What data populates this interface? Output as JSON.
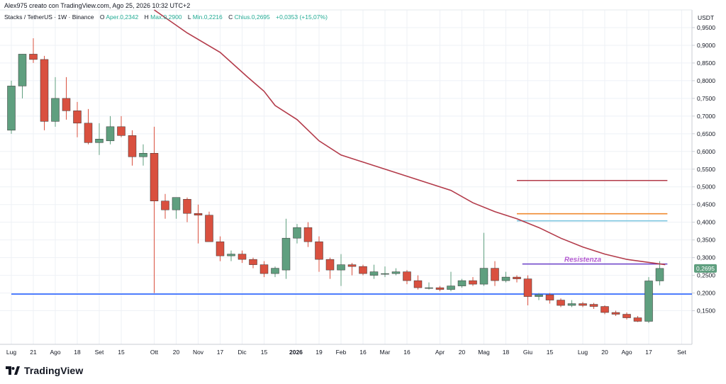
{
  "header": {
    "attribution": "Alex975 creato con TradingView.com, Ago 25, 2026 10:32 UTC+2"
  },
  "legend": {
    "symbol": "Stacks / TetherUS · 1W · Binance",
    "open_label": "O",
    "open_value": "Aper.0,2342",
    "high_label": "H",
    "high_value": "Max.0,2900",
    "low_label": "L",
    "low_value": "Min.0,2216",
    "close_label": "C",
    "close_value": "Chius.0,2695",
    "change_value": "+0,0353 (+15,07%)"
  },
  "branding": {
    "logo_text": "TradingView"
  },
  "colors": {
    "up": "#5f9f7f",
    "down": "#d9503f",
    "ma": "#b33b4a",
    "support": "#2962ff",
    "resistance_label": "#b45bd1",
    "last_price_bg": "#5f9f7f"
  },
  "chart_data": {
    "type": "candlestick",
    "currency": "USDT",
    "ylim": [
      0.055,
      1.0
    ],
    "y_ticks": [
      0.15,
      0.2,
      0.25,
      0.3,
      0.35,
      0.4,
      0.45,
      0.5,
      0.55,
      0.6,
      0.65,
      0.7,
      0.75,
      0.8,
      0.85,
      0.9,
      0.95
    ],
    "y_tick_labels": [
      "0,1500",
      "0,2000",
      "0,2500",
      "0,3000",
      "0,3500",
      "0,4000",
      "0,4500",
      "0,5000",
      "0,5500",
      "0,6000",
      "0,6500",
      "0,7000",
      "0,7500",
      "0,8000",
      "0,8500",
      "0,9000",
      "0,9500"
    ],
    "x_labels": [
      {
        "i": 0,
        "text": "Lug"
      },
      {
        "i": 2,
        "text": "21"
      },
      {
        "i": 4,
        "text": "Ago"
      },
      {
        "i": 6,
        "text": "18"
      },
      {
        "i": 8,
        "text": "Set"
      },
      {
        "i": 10,
        "text": "15"
      },
      {
        "i": 13,
        "text": "Ott"
      },
      {
        "i": 15,
        "text": "20"
      },
      {
        "i": 17,
        "text": "Nov"
      },
      {
        "i": 19,
        "text": "17"
      },
      {
        "i": 21,
        "text": "Dic"
      },
      {
        "i": 23,
        "text": "15"
      },
      {
        "i": 25.9,
        "text": "2026",
        "bold": true
      },
      {
        "i": 28,
        "text": "19"
      },
      {
        "i": 30,
        "text": "Feb"
      },
      {
        "i": 32,
        "text": "16"
      },
      {
        "i": 34,
        "text": "Mar"
      },
      {
        "i": 36,
        "text": "16"
      },
      {
        "i": 39,
        "text": "Apr"
      },
      {
        "i": 41,
        "text": "20"
      },
      {
        "i": 43,
        "text": "Mag"
      },
      {
        "i": 45,
        "text": "18"
      },
      {
        "i": 47,
        "text": "Giu"
      },
      {
        "i": 49,
        "text": "15"
      },
      {
        "i": 52,
        "text": "Lug"
      },
      {
        "i": 54,
        "text": "20"
      },
      {
        "i": 56,
        "text": "Ago"
      },
      {
        "i": 58,
        "text": "17"
      },
      {
        "i": 61,
        "text": "Set"
      }
    ],
    "candles": [
      [
        0.66,
        0.8,
        0.65,
        0.785
      ],
      [
        0.785,
        0.875,
        0.75,
        0.875
      ],
      [
        0.875,
        0.92,
        0.85,
        0.86
      ],
      [
        0.86,
        0.87,
        0.66,
        0.685
      ],
      [
        0.685,
        0.81,
        0.67,
        0.75
      ],
      [
        0.75,
        0.81,
        0.69,
        0.715
      ],
      [
        0.715,
        0.74,
        0.64,
        0.68
      ],
      [
        0.68,
        0.72,
        0.62,
        0.625
      ],
      [
        0.625,
        0.68,
        0.59,
        0.635
      ],
      [
        0.63,
        0.7,
        0.62,
        0.67
      ],
      [
        0.67,
        0.7,
        0.64,
        0.645
      ],
      [
        0.645,
        0.66,
        0.56,
        0.585
      ],
      [
        0.585,
        0.62,
        0.56,
        0.595
      ],
      [
        0.595,
        0.67,
        0.2,
        0.46
      ],
      [
        0.46,
        0.48,
        0.41,
        0.435
      ],
      [
        0.435,
        0.47,
        0.41,
        0.47
      ],
      [
        0.465,
        0.47,
        0.4,
        0.425
      ],
      [
        0.425,
        0.45,
        0.34,
        0.42
      ],
      [
        0.42,
        0.43,
        0.35,
        0.345
      ],
      [
        0.345,
        0.36,
        0.29,
        0.305
      ],
      [
        0.305,
        0.32,
        0.29,
        0.31
      ],
      [
        0.31,
        0.32,
        0.285,
        0.295
      ],
      [
        0.295,
        0.3,
        0.27,
        0.28
      ],
      [
        0.28,
        0.29,
        0.245,
        0.255
      ],
      [
        0.255,
        0.275,
        0.245,
        0.27
      ],
      [
        0.265,
        0.41,
        0.24,
        0.355
      ],
      [
        0.355,
        0.395,
        0.34,
        0.385
      ],
      [
        0.385,
        0.4,
        0.33,
        0.345
      ],
      [
        0.345,
        0.36,
        0.26,
        0.295
      ],
      [
        0.295,
        0.3,
        0.24,
        0.265
      ],
      [
        0.265,
        0.31,
        0.22,
        0.28
      ],
      [
        0.28,
        0.285,
        0.25,
        0.275
      ],
      [
        0.275,
        0.28,
        0.25,
        0.255
      ],
      [
        0.25,
        0.28,
        0.24,
        0.26
      ],
      [
        0.255,
        0.275,
        0.245,
        0.255
      ],
      [
        0.255,
        0.27,
        0.25,
        0.26
      ],
      [
        0.26,
        0.265,
        0.225,
        0.235
      ],
      [
        0.235,
        0.25,
        0.21,
        0.215
      ],
      [
        0.215,
        0.23,
        0.21,
        0.215
      ],
      [
        0.215,
        0.22,
        0.205,
        0.21
      ],
      [
        0.21,
        0.26,
        0.205,
        0.22
      ],
      [
        0.22,
        0.24,
        0.215,
        0.235
      ],
      [
        0.235,
        0.245,
        0.22,
        0.225
      ],
      [
        0.225,
        0.37,
        0.22,
        0.27
      ],
      [
        0.27,
        0.29,
        0.22,
        0.235
      ],
      [
        0.235,
        0.26,
        0.23,
        0.245
      ],
      [
        0.245,
        0.25,
        0.23,
        0.24
      ],
      [
        0.24,
        0.25,
        0.165,
        0.19
      ],
      [
        0.19,
        0.2,
        0.18,
        0.195
      ],
      [
        0.195,
        0.2,
        0.17,
        0.18
      ],
      [
        0.18,
        0.185,
        0.16,
        0.165
      ],
      [
        0.165,
        0.18,
        0.16,
        0.17
      ],
      [
        0.17,
        0.175,
        0.16,
        0.165
      ],
      [
        0.168,
        0.172,
        0.155,
        0.162
      ],
      [
        0.162,
        0.165,
        0.14,
        0.145
      ],
      [
        0.145,
        0.15,
        0.135,
        0.14
      ],
      [
        0.14,
        0.145,
        0.125,
        0.13
      ],
      [
        0.13,
        0.135,
        0.118,
        0.12
      ],
      [
        0.12,
        0.245,
        0.115,
        0.2342
      ],
      [
        0.2342,
        0.29,
        0.2216,
        0.2695
      ]
    ],
    "ma": [
      [
        13,
        1.0
      ],
      [
        16,
        0.935
      ],
      [
        19,
        0.88
      ],
      [
        21.5,
        0.81
      ],
      [
        23,
        0.77
      ],
      [
        24,
        0.73
      ],
      [
        26,
        0.69
      ],
      [
        28,
        0.63
      ],
      [
        30,
        0.59
      ],
      [
        32,
        0.57
      ],
      [
        34,
        0.55
      ],
      [
        36,
        0.53
      ],
      [
        38,
        0.51
      ],
      [
        40,
        0.49
      ],
      [
        42,
        0.455
      ],
      [
        44,
        0.43
      ],
      [
        46,
        0.41
      ],
      [
        48,
        0.385
      ],
      [
        50,
        0.355
      ],
      [
        52,
        0.33
      ],
      [
        54,
        0.31
      ],
      [
        56,
        0.295
      ],
      [
        59.5,
        0.28
      ]
    ],
    "hlines": [
      {
        "y": 0.197,
        "x_from": 0,
        "color": "#2962ff"
      },
      {
        "y": 0.518,
        "x_from": 46,
        "color": "#b33b4a"
      },
      {
        "y": 0.424,
        "x_from": 46,
        "color": "#ef8a2f"
      },
      {
        "y": 0.404,
        "x_from": 46,
        "color": "#7fc7e0"
      },
      {
        "y": 0.282,
        "x_from": 46.5,
        "color": "#6a3fc8"
      }
    ],
    "annotation": {
      "text": "Resistenza",
      "y": 0.282,
      "x_at": 52
    },
    "last_price": {
      "value": 0.2695,
      "label": "0,2695"
    }
  }
}
